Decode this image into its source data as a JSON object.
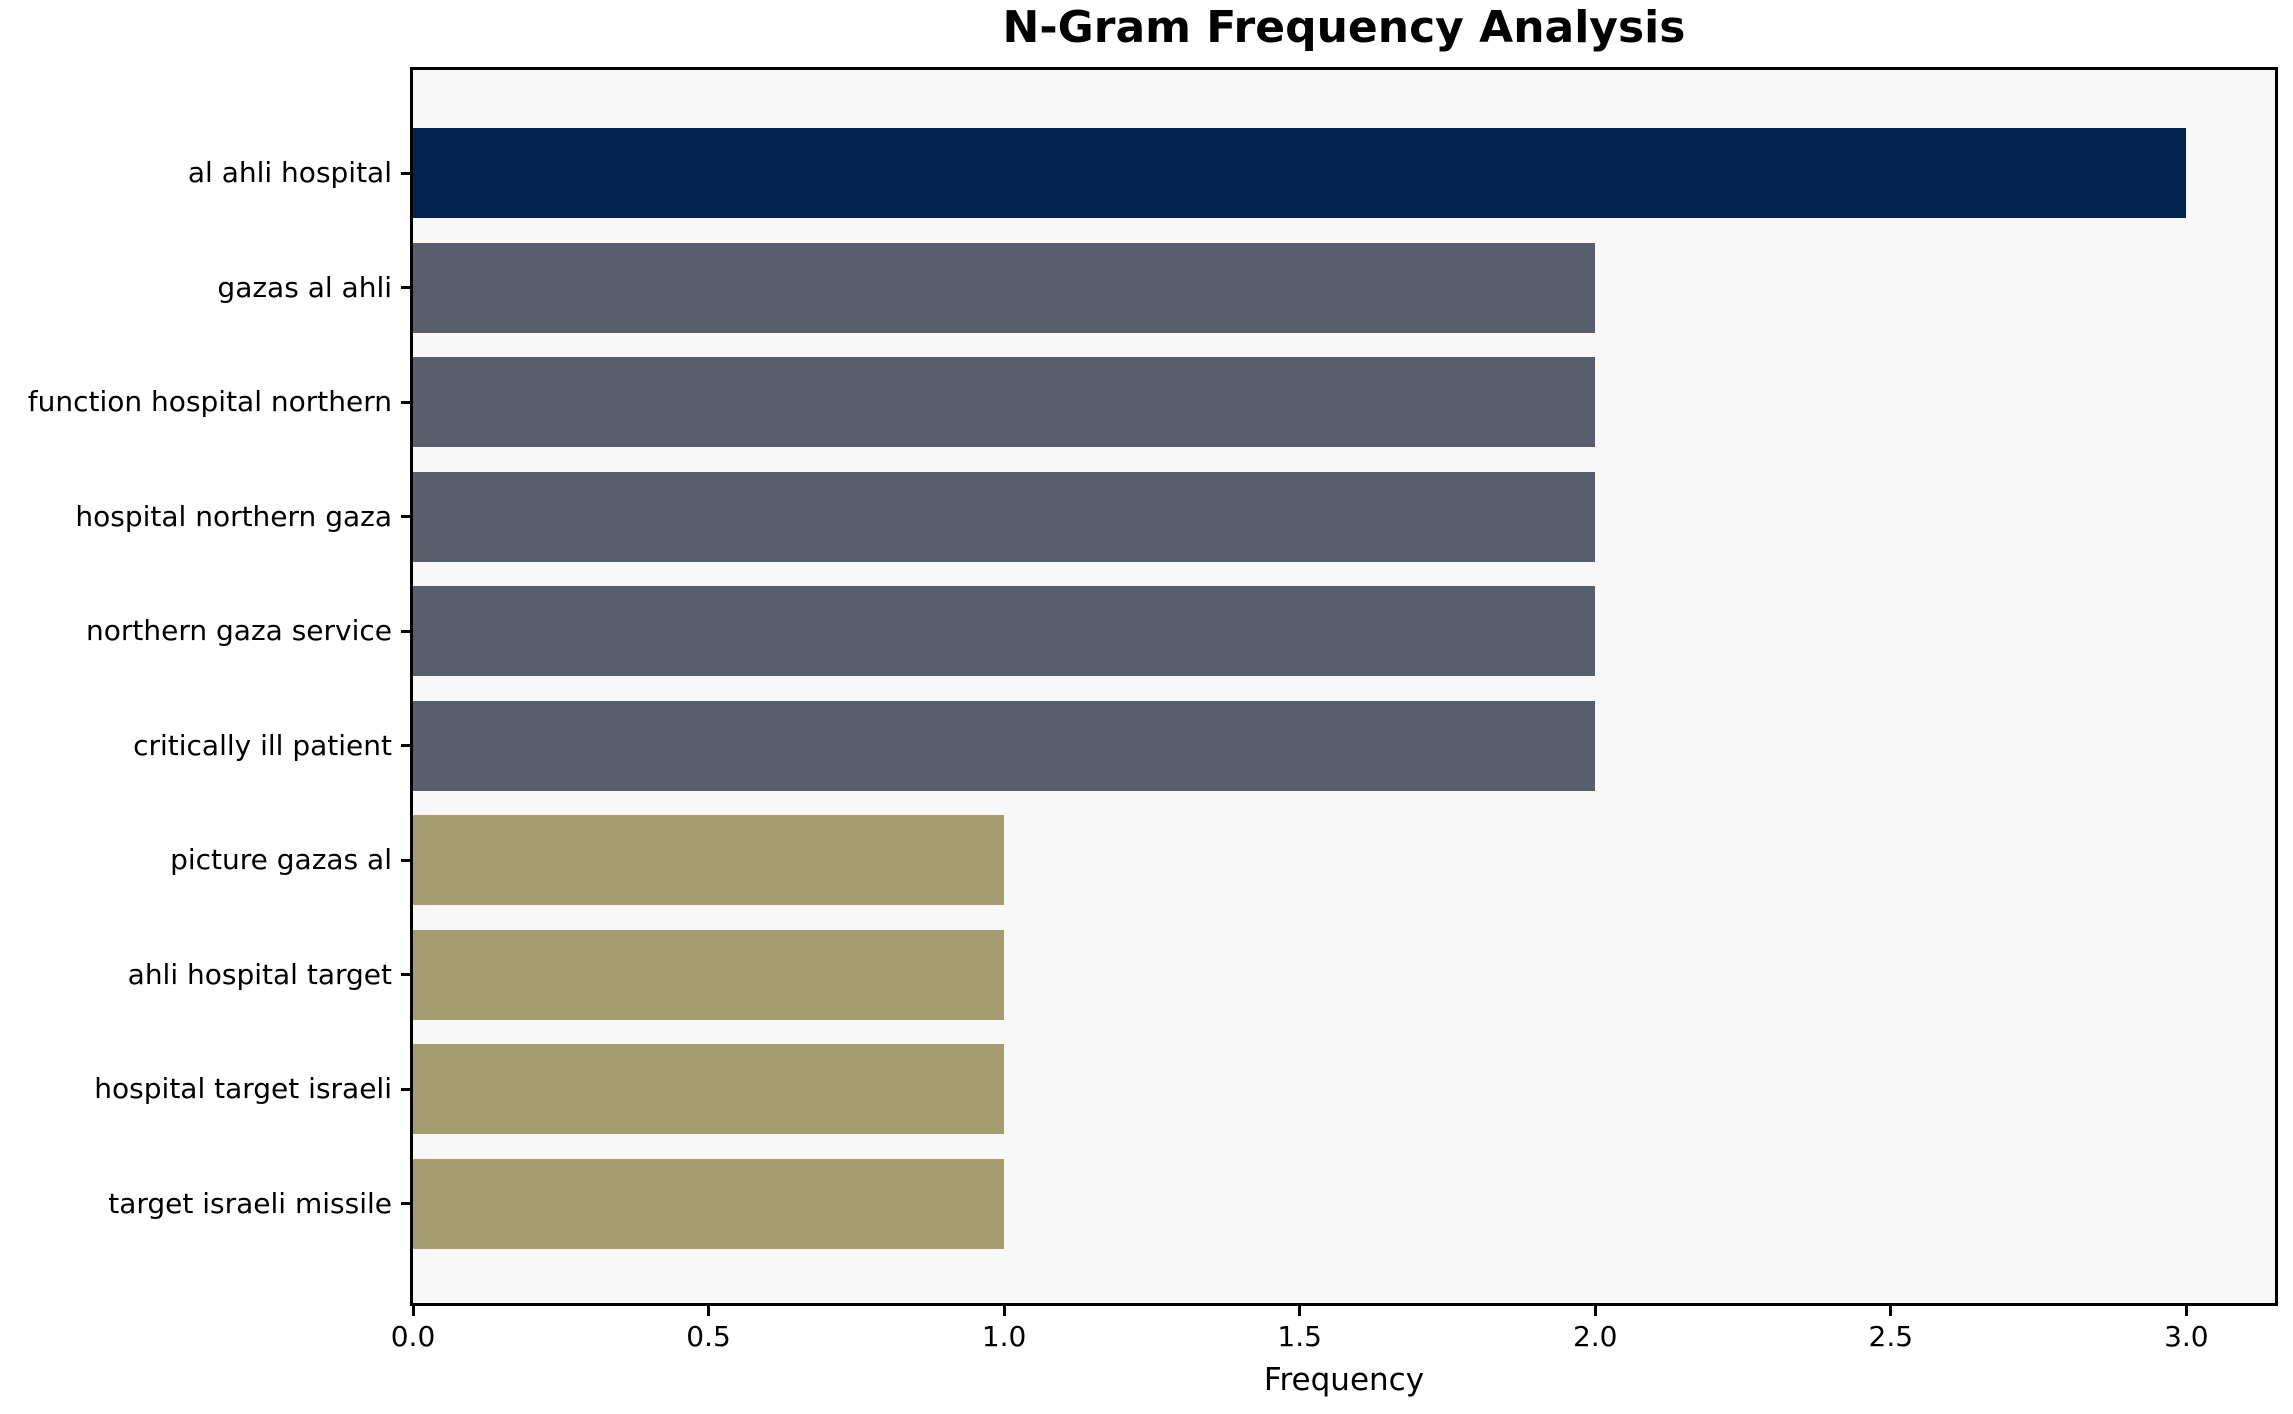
{
  "chart_data": {
    "type": "bar",
    "orientation": "horizontal",
    "title": "N-Gram Frequency Analysis",
    "xlabel": "Frequency",
    "ylabel": "",
    "categories": [
      "al ahli hospital",
      "gazas al ahli",
      "function hospital northern",
      "hospital northern gaza",
      "northern gaza service",
      "critically ill patient",
      "picture gazas al",
      "ahli hospital target",
      "hospital target israeli",
      "target israeli missile"
    ],
    "values": [
      3,
      2,
      2,
      2,
      2,
      2,
      1,
      1,
      1,
      1
    ],
    "bar_colors": [
      "#02234d",
      "#585e6c",
      "#585e6c",
      "#585e6c",
      "#585e6c",
      "#585e6c",
      "#a69c72",
      "#a69c72",
      "#a69c72",
      "#a69c72"
    ],
    "xlim": [
      0,
      3.15
    ],
    "x_ticks": [
      {
        "value": 0.0,
        "label": "0.0"
      },
      {
        "value": 0.5,
        "label": "0.5"
      },
      {
        "value": 1.0,
        "label": "1.0"
      },
      {
        "value": 1.5,
        "label": "1.5"
      },
      {
        "value": 2.0,
        "label": "2.0"
      },
      {
        "value": 2.5,
        "label": "2.5"
      },
      {
        "value": 3.0,
        "label": "3.0"
      }
    ],
    "grid": false,
    "legend": "none",
    "plot_background": "#f8f8f8",
    "figure_background": "#ffffff",
    "spine_color": "#000000"
  }
}
